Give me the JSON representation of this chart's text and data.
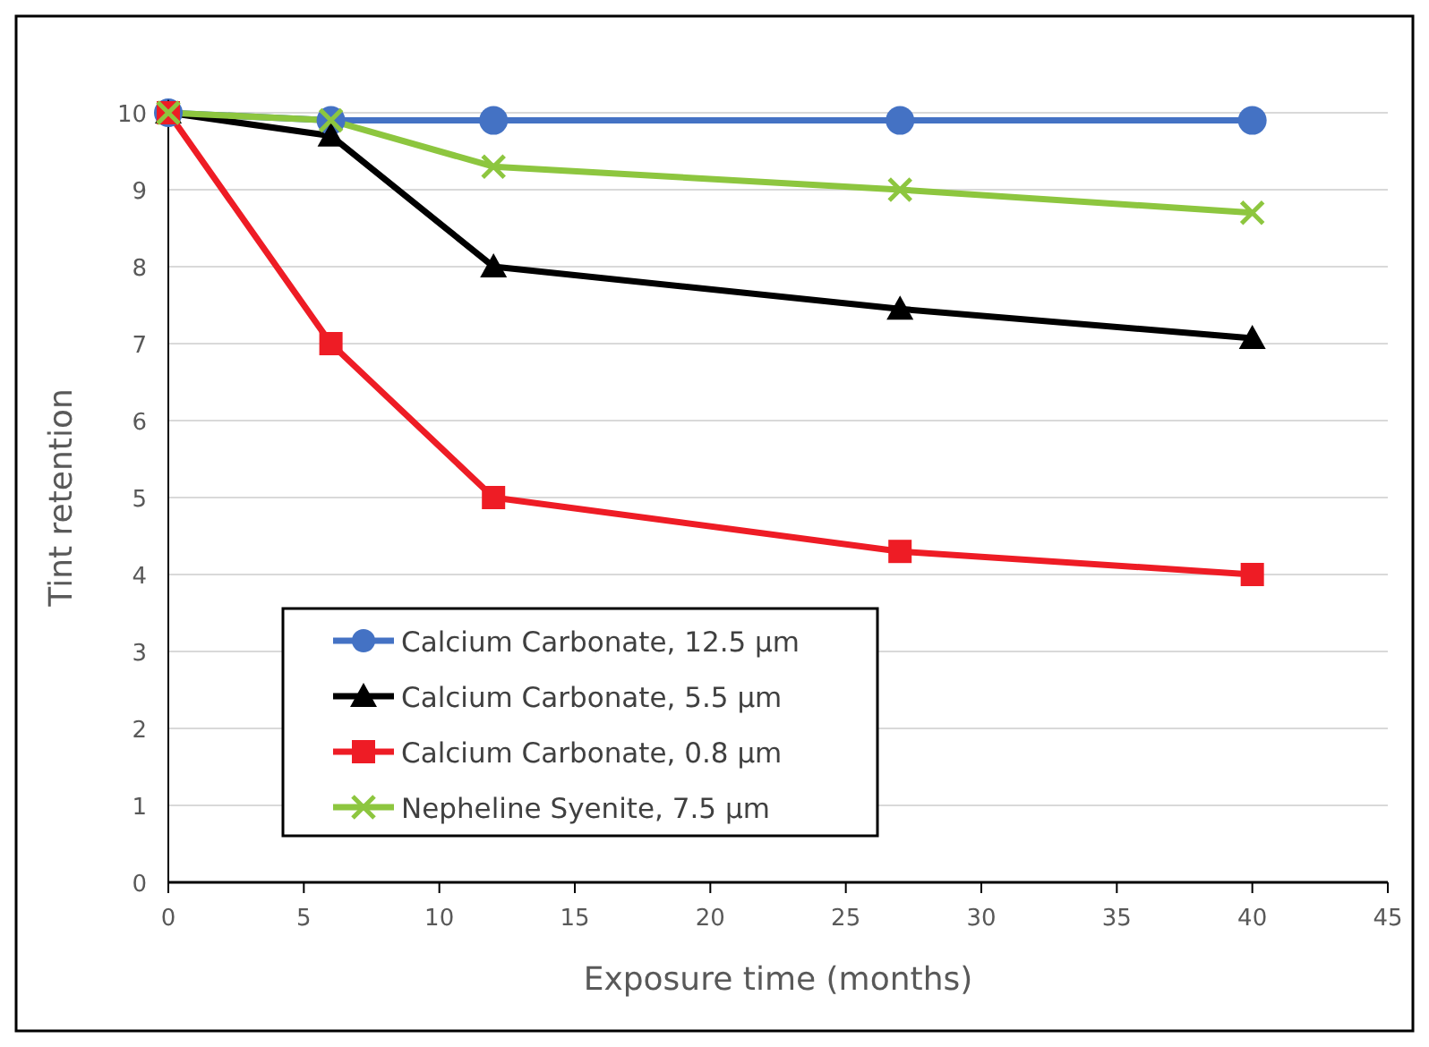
{
  "chart_data": {
    "type": "line",
    "xlabel": "Exposure time (months)",
    "ylabel": "Tint retention",
    "x": [
      0,
      6,
      12,
      27,
      40
    ],
    "series": [
      {
        "name": "Calcium Carbonate, 12.5 µm",
        "color": "#4472c4",
        "marker": "circle",
        "values": [
          10,
          9.9,
          9.9,
          9.9,
          9.9
        ]
      },
      {
        "name": "Calcium Carbonate, 5.5 µm",
        "color": "#000000",
        "marker": "triangle",
        "values": [
          10,
          9.7,
          8.0,
          7.45,
          7.07
        ]
      },
      {
        "name": "Calcium Carbonate, 0.8 µm",
        "color": "#ee1c25",
        "marker": "square",
        "values": [
          10,
          7.0,
          5.0,
          4.3,
          4.0
        ]
      },
      {
        "name": "Nepheline Syenite, 7.5 µm",
        "color": "#8dc63f",
        "marker": "cross",
        "values": [
          10,
          9.9,
          9.3,
          9.0,
          8.7
        ]
      }
    ],
    "xlim": [
      0,
      45
    ],
    "xticks": [
      0,
      5,
      10,
      15,
      20,
      25,
      30,
      35,
      40,
      45
    ],
    "ylim": [
      0,
      10
    ],
    "yticks": [
      0,
      1,
      2,
      3,
      4,
      5,
      6,
      7,
      8,
      9,
      10
    ],
    "grid": "y",
    "legend": "bottom left",
    "line_style": "solid"
  }
}
